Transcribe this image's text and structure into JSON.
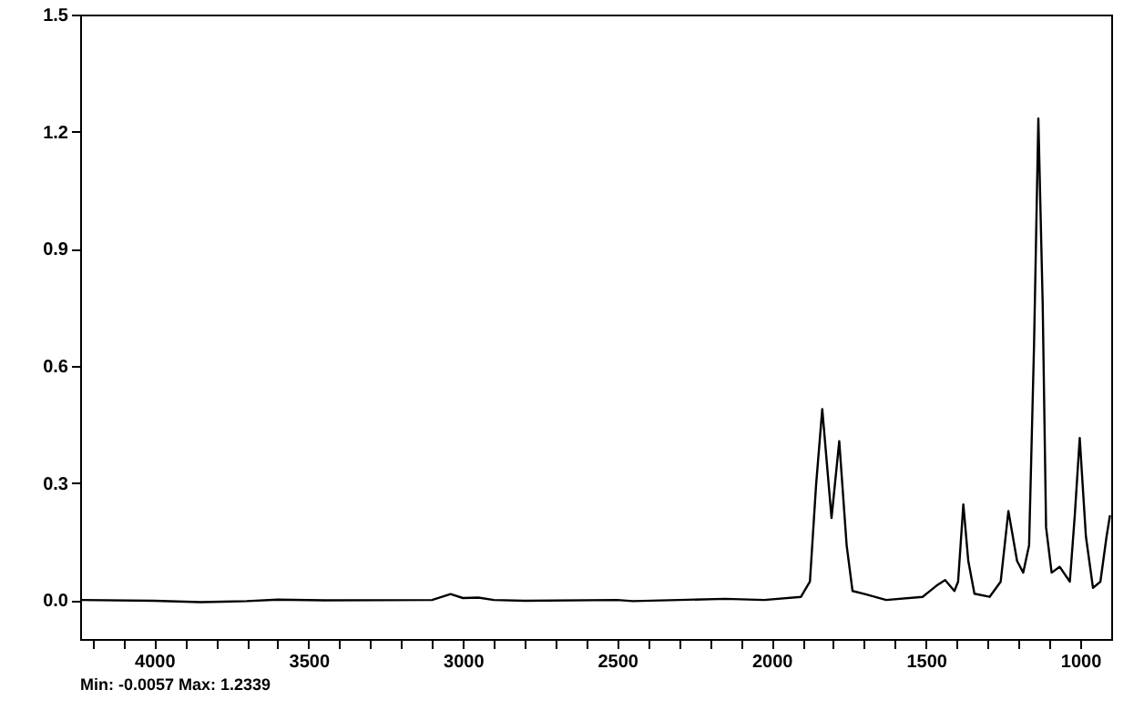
{
  "chart_data": {
    "type": "line",
    "annotations": [
      "Min: -0.0057  Max: 1.2339"
    ],
    "x": [
      4240,
      4000,
      3850,
      3700,
      3600,
      3450,
      3100,
      3040,
      3000,
      2950,
      2900,
      2800,
      2500,
      2450,
      2300,
      2150,
      2024,
      1905,
      1876,
      1856,
      1836,
      1806,
      1781,
      1757,
      1738,
      1698,
      1629,
      1511,
      1462,
      1438,
      1408,
      1396,
      1379,
      1363,
      1343,
      1294,
      1258,
      1233,
      1205,
      1185,
      1166,
      1150,
      1136,
      1122,
      1111,
      1093,
      1067,
      1034,
      1018,
      1002,
      982,
      959,
      935,
      915,
      904
    ],
    "series": [
      {
        "color": "#000000",
        "values": [
          0,
          -0.002,
          -0.0057,
          -0.003,
          0.001,
          -0.001,
          0.0,
          0.015,
          0.005,
          0.006,
          0,
          -0.002,
          0.0,
          -0.003,
          0,
          0.003,
          0.0,
          0.008,
          0.047,
          0.295,
          0.489,
          0.21,
          0.407,
          0.14,
          0.023,
          0.015,
          0.0,
          0.008,
          0.039,
          0.051,
          0.023,
          0.047,
          0.245,
          0.1,
          0.016,
          0.008,
          0.047,
          0.228,
          0.1,
          0.07,
          0.14,
          0.652,
          1.2339,
          0.76,
          0.186,
          0.07,
          0.085,
          0.047,
          0.217,
          0.415,
          0.163,
          0.031,
          0.047,
          0.163,
          0.217
        ]
      }
    ],
    "xlim": [
      4240,
      900
    ],
    "xticks": [
      {
        "value": 4200,
        "label": null
      },
      {
        "value": 4100,
        "label": null
      },
      4000,
      {
        "value": 3900,
        "label": null
      },
      {
        "value": 3800,
        "label": null
      },
      {
        "value": 3700,
        "label": null
      },
      {
        "value": 3600,
        "label": null
      },
      3500,
      {
        "value": 3400,
        "label": null
      },
      {
        "value": 3300,
        "label": null
      },
      {
        "value": 3200,
        "label": null
      },
      {
        "value": 3100,
        "label": null
      },
      3000,
      {
        "value": 2900,
        "label": null
      },
      {
        "value": 2800,
        "label": null
      },
      {
        "value": 2700,
        "label": null
      },
      {
        "value": 2600,
        "label": null
      },
      2500,
      {
        "value": 2400,
        "label": null
      },
      {
        "value": 2300,
        "label": null
      },
      {
        "value": 2200,
        "label": null
      },
      {
        "value": 2100,
        "label": null
      },
      2000,
      {
        "value": 1900,
        "label": null
      },
      {
        "value": 1800,
        "label": null
      },
      {
        "value": 1700,
        "label": null
      },
      {
        "value": 1600,
        "label": null
      },
      1500,
      {
        "value": 1400,
        "label": null
      },
      {
        "value": 1300,
        "label": null
      },
      {
        "value": 1200,
        "label": null
      },
      {
        "value": 1100,
        "label": null
      },
      1000
    ],
    "ylim": [
      -0.1,
      1.5
    ],
    "yticks": [
      {
        "value": 0,
        "label": "0.0"
      },
      0.3,
      0.6,
      0.9,
      1.2,
      1.5
    ],
    "grid": false,
    "marker": "none",
    "line_style": "solid"
  }
}
